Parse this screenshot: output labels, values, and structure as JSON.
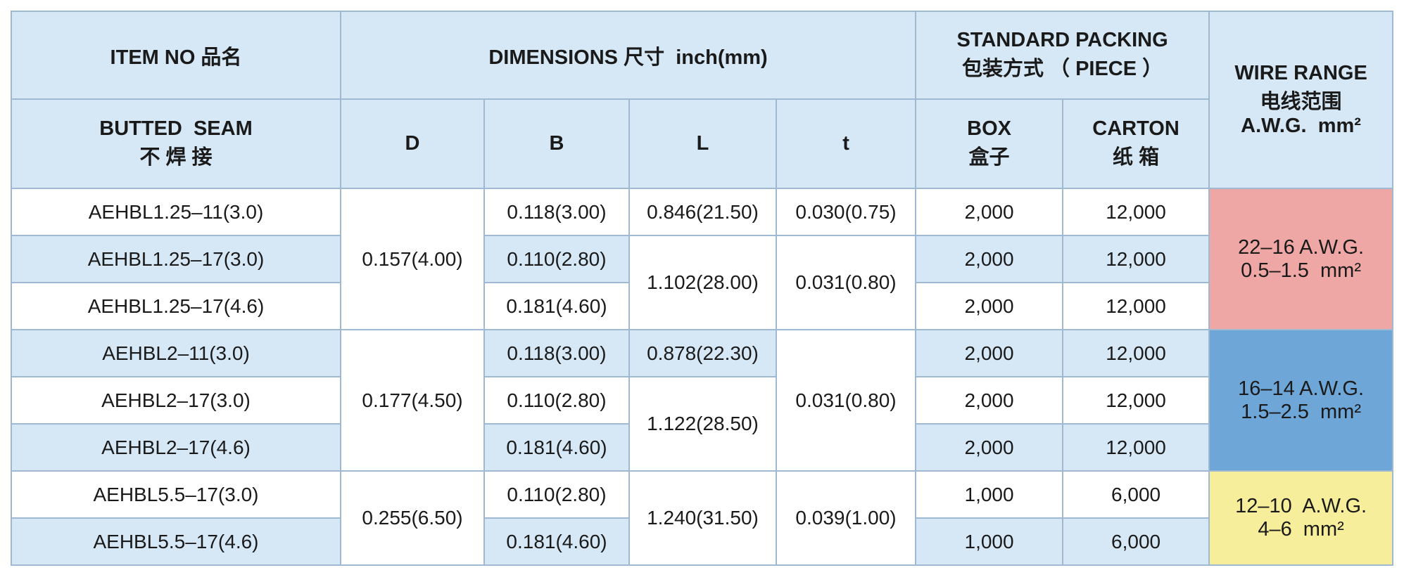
{
  "header": {
    "item_no": "ITEM NO 品名",
    "dimensions": "DIMENSIONS 尺寸  inch(mm)",
    "standard_packing": [
      "STANDARD PACKING",
      "包装方式 （ PIECE ）"
    ],
    "wire_range": [
      "WIRE RANGE",
      "电线范围",
      "A.W.G.  mm²"
    ],
    "butted_seam": [
      "BUTTED  SEAM",
      "不 焊 接"
    ],
    "d": "D",
    "b": "B",
    "l": "L",
    "t": "t",
    "box": [
      "BOX",
      "盒子"
    ],
    "carton": [
      "CARTON",
      "纸 箱"
    ]
  },
  "rows": [
    {
      "item": "AEHBL1.25–11(3.0)",
      "b": "0.118(3.00)",
      "box": "2,000",
      "carton": "12,000"
    },
    {
      "item": "AEHBL1.25–17(3.0)",
      "b": "0.110(2.80)",
      "box": "2,000",
      "carton": "12,000"
    },
    {
      "item": "AEHBL1.25–17(4.6)",
      "b": "0.181(4.60)",
      "box": "2,000",
      "carton": "12,000"
    },
    {
      "item": "AEHBL2–11(3.0)",
      "b": "0.118(3.00)",
      "box": "2,000",
      "carton": "12,000"
    },
    {
      "item": "AEHBL2–17(3.0)",
      "b": "0.110(2.80)",
      "box": "2,000",
      "carton": "12,000"
    },
    {
      "item": "AEHBL2–17(4.6)",
      "b": "0.181(4.60)",
      "box": "2,000",
      "carton": "12,000"
    },
    {
      "item": "AEHBL5.5–17(3.0)",
      "b": "0.110(2.80)",
      "box": "1,000",
      "carton": "6,000"
    },
    {
      "item": "AEHBL5.5–17(4.6)",
      "b": "0.181(4.60)",
      "box": "1,000",
      "carton": "6,000"
    }
  ],
  "d": [
    "0.157(4.00)",
    "0.177(4.50)",
    "0.255(6.50)"
  ],
  "l": [
    "0.846(21.50)",
    "1.102(28.00)",
    "0.878(22.30)",
    "1.122(28.50)",
    "1.240(31.50)"
  ],
  "t": [
    "0.030(0.75)",
    "0.031(0.80)",
    "0.031(0.80)",
    "0.039(1.00)"
  ],
  "wire": [
    [
      "22–16 A.W.G.",
      "0.5–1.5  mm²"
    ],
    [
      "16–14 A.W.G.",
      "1.5–2.5  mm²"
    ],
    [
      "12–10  A.W.G.",
      "4–6  mm²"
    ]
  ]
}
